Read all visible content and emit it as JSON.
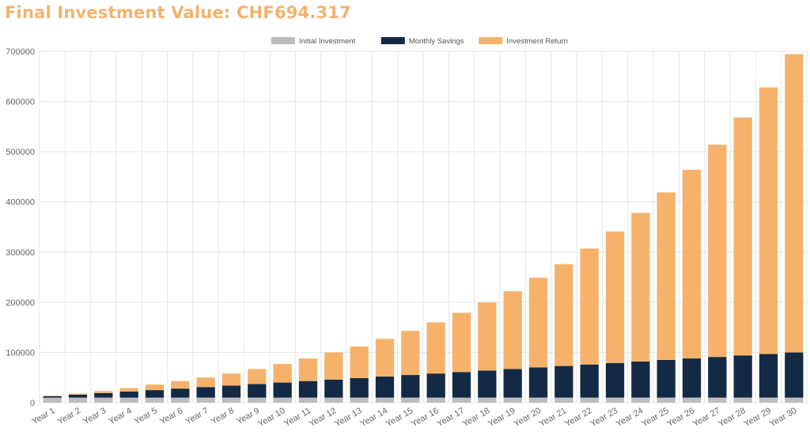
{
  "page": {
    "title": "Final Investment Value: CHF694.317"
  },
  "colors": {
    "title": "#f3b26d",
    "initial": "#bdbdbf",
    "savings": "#132a45",
    "return": "#f6b26b",
    "grid": "#e6e6e6",
    "axis_text": "#666666"
  },
  "chart_data": {
    "type": "bar",
    "stacked": true,
    "legend_position": "top-center",
    "grid": true,
    "ylim": [
      0,
      700000
    ],
    "yticks": [
      0,
      100000,
      200000,
      300000,
      400000,
      500000,
      600000,
      700000
    ],
    "ytick_labels": [
      "0",
      "100000",
      "200000",
      "300000",
      "400000",
      "500000",
      "600000",
      "700000"
    ],
    "categories": [
      "Year 1",
      "Year 2",
      "Year 3",
      "Year 4",
      "Year 5",
      "Year 6",
      "Year 7",
      "Year 8",
      "Year 9",
      "Year 10",
      "Year 11",
      "Year 12",
      "Year 13",
      "Year 14",
      "Year 15",
      "Year 16",
      "Year 17",
      "Year 18",
      "Year 19",
      "Year 20",
      "Year 21",
      "Year 22",
      "Year 23",
      "Year 24",
      "Year 25",
      "Year 26",
      "Year 27",
      "Year 28",
      "Year 29",
      "Year 30"
    ],
    "series": [
      {
        "name": "Initial Investment",
        "color": "#bdbdbf",
        "values": [
          10000,
          10000,
          10000,
          10000,
          10000,
          10000,
          10000,
          10000,
          10000,
          10000,
          10000,
          10000,
          10000,
          10000,
          10000,
          10000,
          10000,
          10000,
          10000,
          10000,
          10000,
          10000,
          10000,
          10000,
          10000,
          10000,
          10000,
          10000,
          10000,
          10000
        ]
      },
      {
        "name": "Monthly Savings",
        "color": "#132a45",
        "values": [
          3000,
          6000,
          9000,
          12000,
          15000,
          18000,
          21000,
          24000,
          27000,
          30000,
          33000,
          36000,
          39000,
          42000,
          45000,
          48000,
          51000,
          54000,
          57000,
          60000,
          63000,
          66000,
          69000,
          72000,
          75000,
          78000,
          81000,
          84000,
          87000,
          90000
        ]
      },
      {
        "name": "Investment Return",
        "color": "#f6b26b",
        "values": [
          700,
          2000,
          4000,
          7000,
          11000,
          15000,
          19000,
          24000,
          30000,
          37000,
          45000,
          54000,
          63000,
          75000,
          88000,
          102000,
          118000,
          136000,
          155000,
          179000,
          203000,
          231000,
          262000,
          296000,
          334000,
          376000,
          423000,
          474000,
          531000,
          594317
        ]
      }
    ]
  }
}
